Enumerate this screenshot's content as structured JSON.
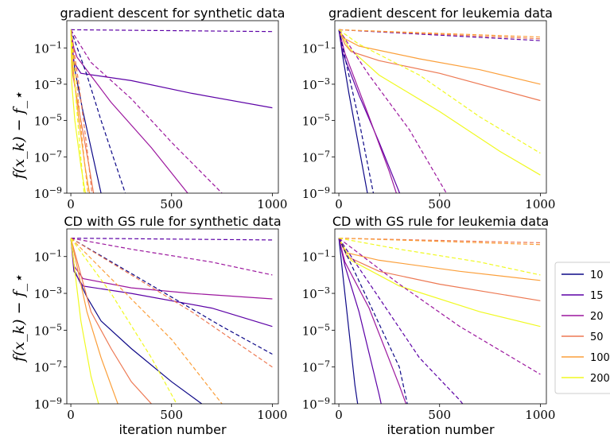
{
  "ylabel": "f(x_k) − f_⋆",
  "legend": {
    "placement": "right",
    "entries": [
      {
        "label": "10",
        "color": "#0d0887"
      },
      {
        "label": "15",
        "color": "#5c01a6"
      },
      {
        "label": "20",
        "color": "#9c179e"
      },
      {
        "label": "50",
        "color": "#ed7953"
      },
      {
        "label": "100",
        "color": "#fb9f3a"
      },
      {
        "label": "200",
        "color": "#f0f921"
      }
    ]
  },
  "chart_data": [
    {
      "type": "line",
      "title": "gradient descent for synthetic data",
      "xlabel": "",
      "xlim": [
        -20,
        1030
      ],
      "ylim_exp": [
        -9,
        0.5
      ],
      "yscale": "log",
      "xticks": [
        "0",
        "500",
        "1000"
      ],
      "yticks": [
        "10^-1",
        "10^-3",
        "10^-5",
        "10^-7",
        "10^-9"
      ],
      "series": [
        {
          "color": "#0d0887",
          "style": "solid",
          "x": [
            0,
            10,
            20,
            60,
            100,
            130,
            160
          ],
          "y": [
            0,
            -1.2,
            -2.2,
            -4.5,
            -6.5,
            -8,
            -9.5
          ]
        },
        {
          "color": "#5c01a6",
          "style": "solid",
          "x": [
            0,
            15,
            50,
            300,
            600,
            1000
          ],
          "y": [
            0,
            -1.8,
            -2.4,
            -2.8,
            -3.5,
            -4.3
          ]
        },
        {
          "color": "#9c179e",
          "style": "solid",
          "x": [
            0,
            15,
            30,
            200,
            400,
            580
          ],
          "y": [
            0,
            -1.0,
            -1.5,
            -4.0,
            -6.5,
            -9
          ]
        },
        {
          "color": "#ed7953",
          "style": "solid",
          "x": [
            0,
            10,
            50,
            90,
            120
          ],
          "y": [
            0,
            -2.5,
            -5,
            -7.5,
            -9.5
          ]
        },
        {
          "color": "#fb9f3a",
          "style": "solid",
          "x": [
            0,
            10,
            40,
            70,
            100
          ],
          "y": [
            0,
            -2,
            -5,
            -7.5,
            -9.5
          ]
        },
        {
          "color": "#f0f921",
          "style": "solid",
          "x": [
            0,
            5,
            20,
            50,
            80
          ],
          "y": [
            0,
            -3,
            -5,
            -7.5,
            -9.5
          ]
        },
        {
          "color": "#0d0887",
          "style": "dashed",
          "x": [
            0,
            80,
            150,
            270
          ],
          "y": [
            0,
            -2.5,
            -5,
            -9
          ]
        },
        {
          "color": "#5c01a6",
          "style": "dashed",
          "x": [
            0,
            1000
          ],
          "y": [
            0,
            -0.1
          ]
        },
        {
          "color": "#9c179e",
          "style": "dashed",
          "x": [
            0,
            100,
            300,
            500,
            750
          ],
          "y": [
            0,
            -1.8,
            -3.8,
            -6.2,
            -9
          ]
        },
        {
          "color": "#ed7953",
          "style": "dashed",
          "x": [
            0,
            40,
            80,
            110
          ],
          "y": [
            0,
            -3,
            -6.5,
            -9.5
          ]
        },
        {
          "color": "#fb9f3a",
          "style": "dashed",
          "x": [
            0,
            30,
            60,
            90
          ],
          "y": [
            0,
            -3,
            -6.5,
            -9.5
          ]
        },
        {
          "color": "#f0f921",
          "style": "dashed",
          "x": [
            0,
            20,
            45,
            70
          ],
          "y": [
            0,
            -3,
            -6.5,
            -9.5
          ]
        }
      ]
    },
    {
      "type": "line",
      "title": "gradient descent for leukemia data",
      "xlabel": "",
      "xlim": [
        -20,
        1030
      ],
      "ylim_exp": [
        -9,
        0.5
      ],
      "yscale": "log",
      "xticks": [
        "0",
        "500",
        "1000"
      ],
      "yticks": [
        "10^-1",
        "10^-3",
        "10^-5",
        "10^-7",
        "10^-9"
      ],
      "series": [
        {
          "color": "#0d0887",
          "style": "solid",
          "x": [
            0,
            20,
            50,
            100,
            150
          ],
          "y": [
            0,
            -1.5,
            -3.5,
            -6.5,
            -9.5
          ]
        },
        {
          "color": "#5c01a6",
          "style": "solid",
          "x": [
            0,
            20,
            100,
            200,
            320
          ],
          "y": [
            0,
            -1.3,
            -3.6,
            -6.2,
            -9.5
          ]
        },
        {
          "color": "#9c179e",
          "style": "solid",
          "x": [
            0,
            30,
            150,
            250,
            300
          ],
          "y": [
            0,
            -1.3,
            -4.8,
            -7.8,
            -9.5
          ]
        },
        {
          "color": "#ed7953",
          "style": "solid",
          "x": [
            0,
            30,
            60,
            200,
            500,
            1000
          ],
          "y": [
            0,
            -0.8,
            -1.2,
            -1.7,
            -2.4,
            -3.9
          ]
        },
        {
          "color": "#fb9f3a",
          "style": "solid",
          "x": [
            0,
            30,
            100,
            400,
            700,
            1000
          ],
          "y": [
            0,
            -0.5,
            -0.9,
            -1.6,
            -2.2,
            -3.0
          ]
        },
        {
          "color": "#f0f921",
          "style": "solid",
          "x": [
            0,
            50,
            200,
            500,
            800,
            1000
          ],
          "y": [
            0,
            -1.0,
            -2.5,
            -4.5,
            -6.7,
            -8.0
          ]
        },
        {
          "color": "#0d0887",
          "style": "dashed",
          "x": [
            0,
            50,
            100,
            180
          ],
          "y": [
            0,
            -2.5,
            -5,
            -9.5
          ]
        },
        {
          "color": "#5c01a6",
          "style": "dashed",
          "x": [
            0,
            1000
          ],
          "y": [
            0,
            -0.6
          ]
        },
        {
          "color": "#9c179e",
          "style": "dashed",
          "x": [
            0,
            150,
            350,
            560
          ],
          "y": [
            0,
            -2.5,
            -5.5,
            -9.5
          ]
        },
        {
          "color": "#ed7953",
          "style": "dashed",
          "x": [
            0,
            1000
          ],
          "y": [
            0,
            -0.5
          ]
        },
        {
          "color": "#fb9f3a",
          "style": "dashed",
          "x": [
            0,
            1000
          ],
          "y": [
            0,
            -0.4
          ]
        },
        {
          "color": "#f0f921",
          "style": "dashed",
          "x": [
            0,
            100,
            400,
            700,
            1000
          ],
          "y": [
            0,
            -0.8,
            -2.5,
            -4.8,
            -6.8
          ]
        }
      ]
    },
    {
      "type": "line",
      "title": "CD with GS rule for synthetic data",
      "xlabel": "iteration number",
      "xlim": [
        -20,
        1030
      ],
      "ylim_exp": [
        -9,
        0.5
      ],
      "yscale": "log",
      "xticks": [
        "0",
        "500",
        "1000"
      ],
      "yticks": [
        "10^-1",
        "10^-3",
        "10^-5",
        "10^-7",
        "10^-9"
      ],
      "series": [
        {
          "color": "#0d0887",
          "style": "solid",
          "x": [
            0,
            20,
            80,
            150,
            300,
            500,
            650
          ],
          "y": [
            0,
            -1.8,
            -3.2,
            -4.5,
            -6,
            -7.8,
            -9
          ]
        },
        {
          "color": "#5c01a6",
          "style": "solid",
          "x": [
            0,
            15,
            60,
            300,
            700,
            1000
          ],
          "y": [
            0,
            -1.8,
            -2.6,
            -3.0,
            -3.8,
            -4.8
          ]
        },
        {
          "color": "#9c179e",
          "style": "solid",
          "x": [
            0,
            15,
            60,
            300,
            600,
            1000
          ],
          "y": [
            0,
            -1.5,
            -2.2,
            -2.7,
            -3.0,
            -3.3
          ]
        },
        {
          "color": "#ed7953",
          "style": "solid",
          "x": [
            0,
            100,
            200,
            300,
            400
          ],
          "y": [
            0,
            -4,
            -6,
            -7.8,
            -9
          ]
        },
        {
          "color": "#fb9f3a",
          "style": "solid",
          "x": [
            0,
            80,
            150,
            200,
            250
          ],
          "y": [
            0,
            -4,
            -6.5,
            -8,
            -9.5
          ]
        },
        {
          "color": "#f0f921",
          "style": "solid",
          "x": [
            0,
            50,
            100,
            150
          ],
          "y": [
            0,
            -4.5,
            -7.5,
            -9.5
          ]
        },
        {
          "color": "#0d0887",
          "style": "dashed",
          "x": [
            0,
            250,
            500,
            750,
            1000
          ],
          "y": [
            0,
            -1.6,
            -3.2,
            -4.8,
            -6.3
          ]
        },
        {
          "color": "#5c01a6",
          "style": "dashed",
          "x": [
            0,
            1000
          ],
          "y": [
            0,
            -0.1
          ]
        },
        {
          "color": "#9c179e",
          "style": "dashed",
          "x": [
            0,
            300,
            700,
            1000
          ],
          "y": [
            0,
            -0.6,
            -1.3,
            -2.0
          ]
        },
        {
          "color": "#ed7953",
          "style": "dashed",
          "x": [
            0,
            300,
            600,
            1000
          ],
          "y": [
            0,
            -2.0,
            -4.0,
            -7.0
          ]
        },
        {
          "color": "#fb9f3a",
          "style": "dashed",
          "x": [
            0,
            200,
            500,
            750
          ],
          "y": [
            0,
            -2.2,
            -5.5,
            -9
          ]
        },
        {
          "color": "#f0f921",
          "style": "dashed",
          "x": [
            0,
            200,
            400,
            550
          ],
          "y": [
            0,
            -3,
            -6.5,
            -9.5
          ]
        }
      ]
    },
    {
      "type": "line",
      "title": "CD with GS rule for leukemia data",
      "xlabel": "iteration number",
      "xlim": [
        -20,
        1030
      ],
      "ylim_exp": [
        -9,
        0.5
      ],
      "yscale": "log",
      "xticks": [
        "0",
        "500",
        "1000"
      ],
      "yticks": [
        "10^-1",
        "10^-3",
        "10^-5",
        "10^-7",
        "10^-9"
      ],
      "series": [
        {
          "color": "#0d0887",
          "style": "solid",
          "x": [
            0,
            20,
            50,
            80,
            100
          ],
          "y": [
            0,
            -2,
            -5,
            -8,
            -9.5
          ]
        },
        {
          "color": "#5c01a6",
          "style": "solid",
          "x": [
            0,
            30,
            100,
            200,
            220
          ],
          "y": [
            0,
            -1.5,
            -4,
            -8.5,
            -9.5
          ]
        },
        {
          "color": "#9c179e",
          "style": "solid",
          "x": [
            0,
            30,
            150,
            300,
            350
          ],
          "y": [
            0,
            -1.3,
            -3.8,
            -8,
            -9.5
          ]
        },
        {
          "color": "#ed7953",
          "style": "solid",
          "x": [
            0,
            40,
            200,
            500,
            1000
          ],
          "y": [
            0,
            -1.0,
            -1.8,
            -2.5,
            -3.4
          ]
        },
        {
          "color": "#fb9f3a",
          "style": "solid",
          "x": [
            0,
            40,
            200,
            600,
            1000
          ],
          "y": [
            0,
            -0.8,
            -1.2,
            -1.8,
            -2.3
          ]
        },
        {
          "color": "#f0f921",
          "style": "solid",
          "x": [
            0,
            60,
            300,
            700,
            1000
          ],
          "y": [
            0,
            -1.2,
            -2.6,
            -4.0,
            -4.8
          ]
        },
        {
          "color": "#0d0887",
          "style": "dashed",
          "x": [
            0,
            150,
            300,
            350
          ],
          "y": [
            0,
            -3.5,
            -7,
            -9.5
          ]
        },
        {
          "color": "#5c01a6",
          "style": "dashed",
          "x": [
            0,
            400,
            600,
            650
          ],
          "y": [
            0,
            -6.5,
            -8.8,
            -9.5
          ]
        },
        {
          "color": "#9c179e",
          "style": "dashed",
          "x": [
            0,
            300,
            600,
            1000
          ],
          "y": [
            0,
            -2.5,
            -4.8,
            -7.4
          ]
        },
        {
          "color": "#ed7953",
          "style": "dashed",
          "x": [
            0,
            1000
          ],
          "y": [
            0,
            -0.25
          ]
        },
        {
          "color": "#fb9f3a",
          "style": "dashed",
          "x": [
            0,
            1000
          ],
          "y": [
            0,
            -0.35
          ]
        },
        {
          "color": "#f0f921",
          "style": "dashed",
          "x": [
            0,
            300,
            700,
            1000
          ],
          "y": [
            0,
            -0.6,
            -1.3,
            -2.0
          ]
        }
      ]
    }
  ]
}
